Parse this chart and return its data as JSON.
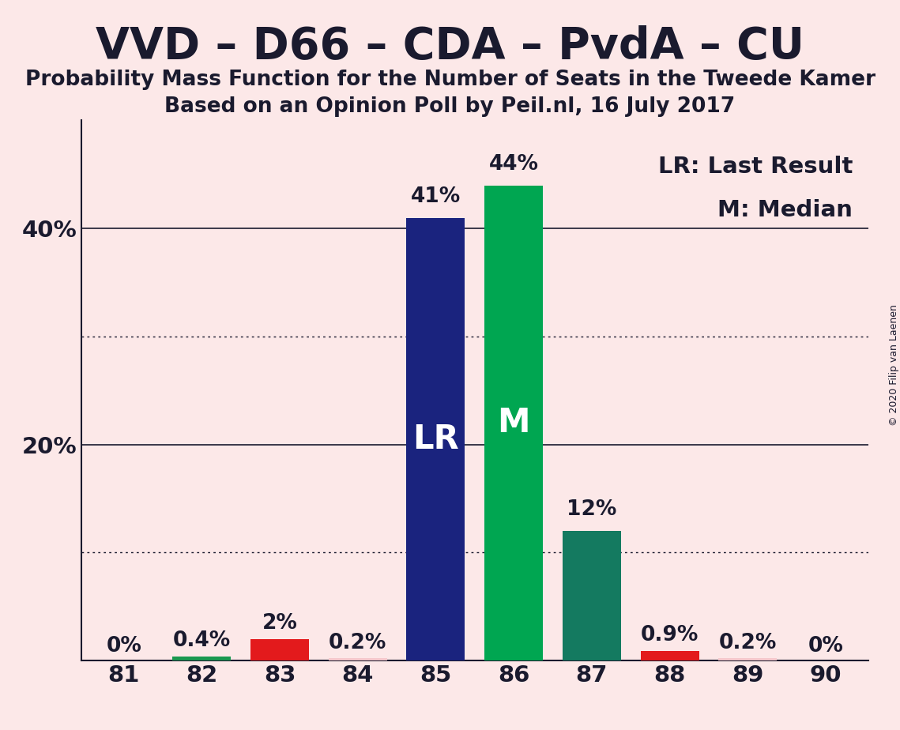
{
  "title": "VVD – D66 – CDA – PvdA – CU",
  "subtitle1": "Probability Mass Function for the Number of Seats in the Tweede Kamer",
  "subtitle2": "Based on an Opinion Poll by Peil.nl, 16 July 2017",
  "copyright": "© 2020 Filip van Laenen",
  "legend_lr": "LR: Last Result",
  "legend_m": "M: Median",
  "seats": [
    81,
    82,
    83,
    84,
    85,
    86,
    87,
    88,
    89,
    90
  ],
  "values": [
    0.0,
    0.4,
    2.0,
    0.2,
    41.0,
    44.0,
    12.0,
    0.9,
    0.2,
    0.0
  ],
  "labels": [
    "0%",
    "0.4%",
    "2%",
    "0.2%",
    "41%",
    "44%",
    "12%",
    "0.9%",
    "0.2%",
    "0%"
  ],
  "bar_colors": [
    "#f5c8cc",
    "#1a9850",
    "#e31a1c",
    "#f5c8cc",
    "#1a237e",
    "#00a651",
    "#147a60",
    "#e31a1c",
    "#f5c8cc",
    "#f5c8cc"
  ],
  "bar_labels": [
    "",
    "",
    "",
    "",
    "LR",
    "M",
    "",
    "",
    "",
    ""
  ],
  "background_color": "#fce8e8",
  "ylim": [
    0,
    50
  ],
  "solid_gridlines": [
    20,
    40
  ],
  "dotted_gridlines": [
    10,
    30
  ],
  "ytick_values": [
    20,
    40
  ],
  "ytick_labels": [
    "20%",
    "40%"
  ],
  "bar_width": 0.75,
  "title_fontsize": 40,
  "subtitle_fontsize": 19,
  "label_fontsize": 19,
  "bar_inner_fontsize": 30,
  "tick_fontsize": 21,
  "legend_fontsize": 21,
  "copyright_fontsize": 9
}
